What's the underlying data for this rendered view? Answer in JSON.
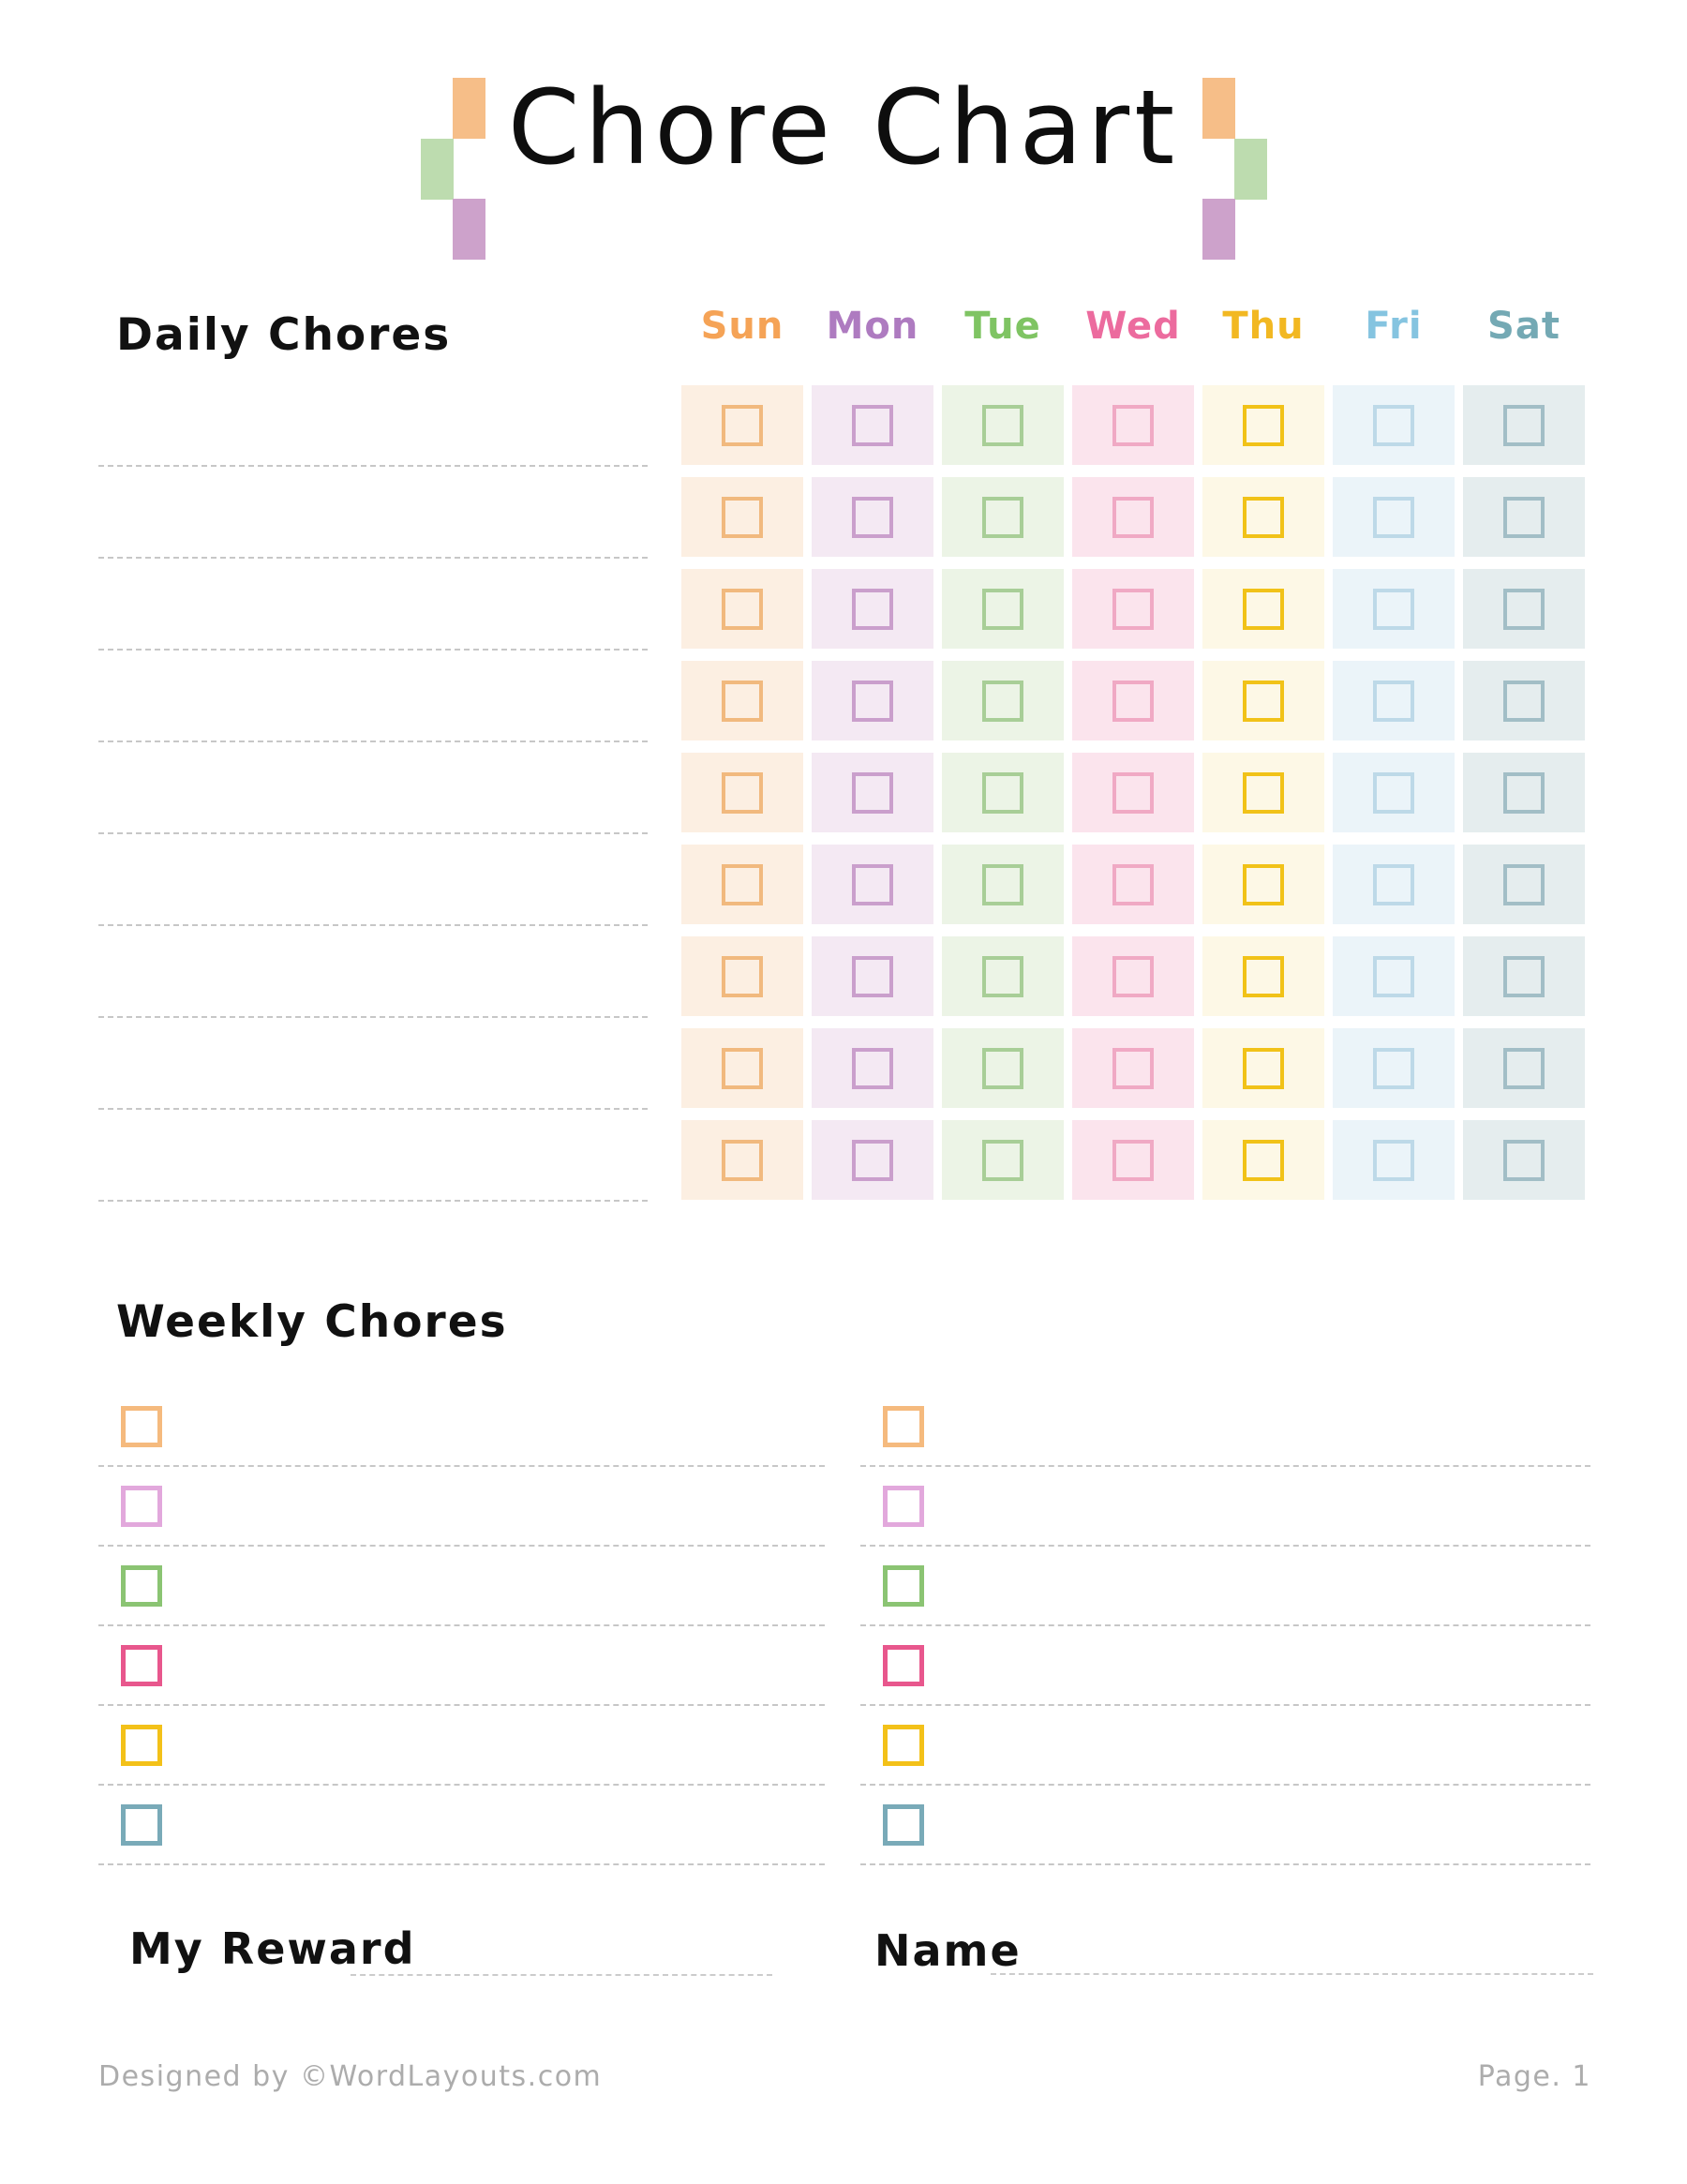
{
  "title": {
    "text": "Chore Chart"
  },
  "decor": {
    "orange": "#F6BE88",
    "green": "#BDDCAF",
    "purple": "#CDA2CB"
  },
  "daily": {
    "heading": "Daily Chores",
    "line_count": 9,
    "grid_rows": 9,
    "days": [
      {
        "label": "Sun",
        "text_color": "#F5A356",
        "cell_bg": "#FCEFE2",
        "box_color": "#F1B97E"
      },
      {
        "label": "Mon",
        "text_color": "#AE7BC0",
        "cell_bg": "#F4E9F3",
        "box_color": "#CA9FCC"
      },
      {
        "label": "Tue",
        "text_color": "#7FC463",
        "cell_bg": "#ECF4E6",
        "box_color": "#A8CE97"
      },
      {
        "label": "Wed",
        "text_color": "#EC6B9E",
        "cell_bg": "#FBE4ED",
        "box_color": "#F0A9C4"
      },
      {
        "label": "Thu",
        "text_color": "#F2B822",
        "cell_bg": "#FDF8E6",
        "box_color": "#F1C218"
      },
      {
        "label": "Fri",
        "text_color": "#85C4E0",
        "cell_bg": "#EBF4F9",
        "box_color": "#BDD9E8"
      },
      {
        "label": "Sat",
        "text_color": "#74A9B4",
        "cell_bg": "#E5EDEE",
        "box_color": "#A2BEC6"
      }
    ]
  },
  "weekly": {
    "heading": "Weekly Chores",
    "rows_per_column": 6,
    "columns": [
      "left",
      "right"
    ],
    "box_colors": [
      "#F5BA7E",
      "#E2A8DC",
      "#8BC473",
      "#E8578D",
      "#F3C119",
      "#79AAB8"
    ]
  },
  "fields": {
    "reward_label": "My Reward",
    "name_label": "Name"
  },
  "footer": {
    "left": "Designed by ©WordLayouts.com",
    "right": "Page. 1"
  }
}
